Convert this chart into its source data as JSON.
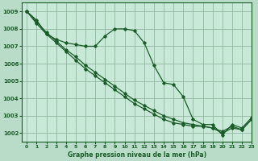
{
  "title": "Graphe pression niveau de la mer (hPa)",
  "background_color": "#b8dcc8",
  "plot_bg_color": "#c8e8d8",
  "grid_color": "#90b8a0",
  "line_color": "#1a5c28",
  "xlim": [
    -0.5,
    23
  ],
  "ylim": [
    1001.5,
    1009.5
  ],
  "yticks": [
    1002,
    1003,
    1004,
    1005,
    1006,
    1007,
    1008,
    1009
  ],
  "xticks": [
    0,
    1,
    2,
    3,
    4,
    5,
    6,
    7,
    8,
    9,
    10,
    11,
    12,
    13,
    14,
    15,
    16,
    17,
    18,
    19,
    20,
    21,
    22,
    23
  ],
  "series1_x": [
    0,
    1,
    2,
    3,
    4,
    5,
    6,
    7,
    8,
    9,
    10,
    11,
    12,
    13,
    14,
    15,
    16,
    17,
    18,
    19,
    20,
    21,
    22,
    23
  ],
  "series1_y": [
    1009.0,
    1008.5,
    1007.7,
    1007.4,
    1007.2,
    1007.1,
    1007.0,
    1007.0,
    1007.6,
    1008.0,
    1008.0,
    1007.9,
    1007.2,
    1005.9,
    1004.9,
    1004.8,
    1004.1,
    1002.8,
    1002.5,
    1002.5,
    1001.9,
    1002.5,
    1002.3,
    1002.9
  ],
  "series2_x": [
    0,
    1,
    2,
    3,
    4,
    5,
    6,
    7,
    8,
    9,
    10,
    11,
    12,
    13,
    14,
    15,
    16,
    17,
    18,
    19,
    20,
    21,
    22,
    23
  ],
  "series2_y": [
    1009.0,
    1008.4,
    1007.8,
    1007.3,
    1006.8,
    1006.4,
    1005.9,
    1005.5,
    1005.1,
    1004.7,
    1004.3,
    1003.9,
    1003.6,
    1003.3,
    1003.0,
    1002.8,
    1002.6,
    1002.5,
    1002.4,
    1002.3,
    1002.1,
    1002.4,
    1002.2,
    1002.8
  ],
  "series3_x": [
    0,
    1,
    2,
    3,
    4,
    5,
    6,
    7,
    8,
    9,
    10,
    11,
    12,
    13,
    14,
    15,
    16,
    17,
    18,
    19,
    20,
    21,
    22,
    23
  ],
  "series3_y": [
    1009.0,
    1008.3,
    1007.7,
    1007.2,
    1006.7,
    1006.2,
    1005.7,
    1005.3,
    1004.9,
    1004.5,
    1004.1,
    1003.7,
    1003.4,
    1003.1,
    1002.8,
    1002.6,
    1002.5,
    1002.4,
    1002.4,
    1002.3,
    1002.0,
    1002.3,
    1002.2,
    1002.8
  ],
  "font_size_x": 4.5,
  "font_size_y": 5.0,
  "xlabel_fontsize": 5.5
}
